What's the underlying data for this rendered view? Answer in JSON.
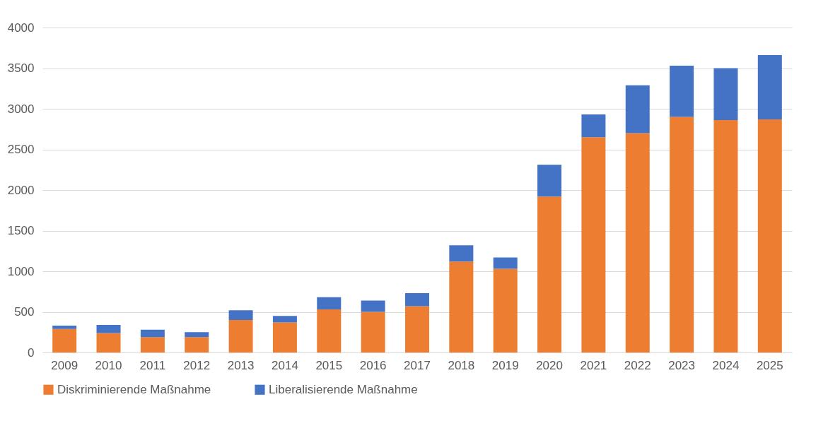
{
  "chart_data": {
    "type": "bar",
    "stacked": true,
    "categories": [
      "2009",
      "2010",
      "2011",
      "2012",
      "2013",
      "2014",
      "2015",
      "2016",
      "2017",
      "2018",
      "2019",
      "2020",
      "2021",
      "2022",
      "2023",
      "2024",
      "2025"
    ],
    "series": [
      {
        "name": "Diskriminierende Maßnahme",
        "color": "#ed7d31",
        "values": [
          290,
          240,
          190,
          190,
          400,
          370,
          530,
          500,
          570,
          1120,
          1030,
          1920,
          2650,
          2700,
          2900,
          2860,
          2870
        ]
      },
      {
        "name": "Liberalisierende Maßnahme",
        "color": "#4472c4",
        "values": [
          40,
          100,
          90,
          60,
          120,
          80,
          150,
          140,
          160,
          200,
          140,
          390,
          280,
          590,
          630,
          640,
          790
        ]
      }
    ],
    "ylim": [
      0,
      4000
    ],
    "yticks": [
      0,
      500,
      1000,
      1500,
      2000,
      2500,
      3000,
      3500,
      4000
    ],
    "grid": "y",
    "legend": "bottom"
  }
}
